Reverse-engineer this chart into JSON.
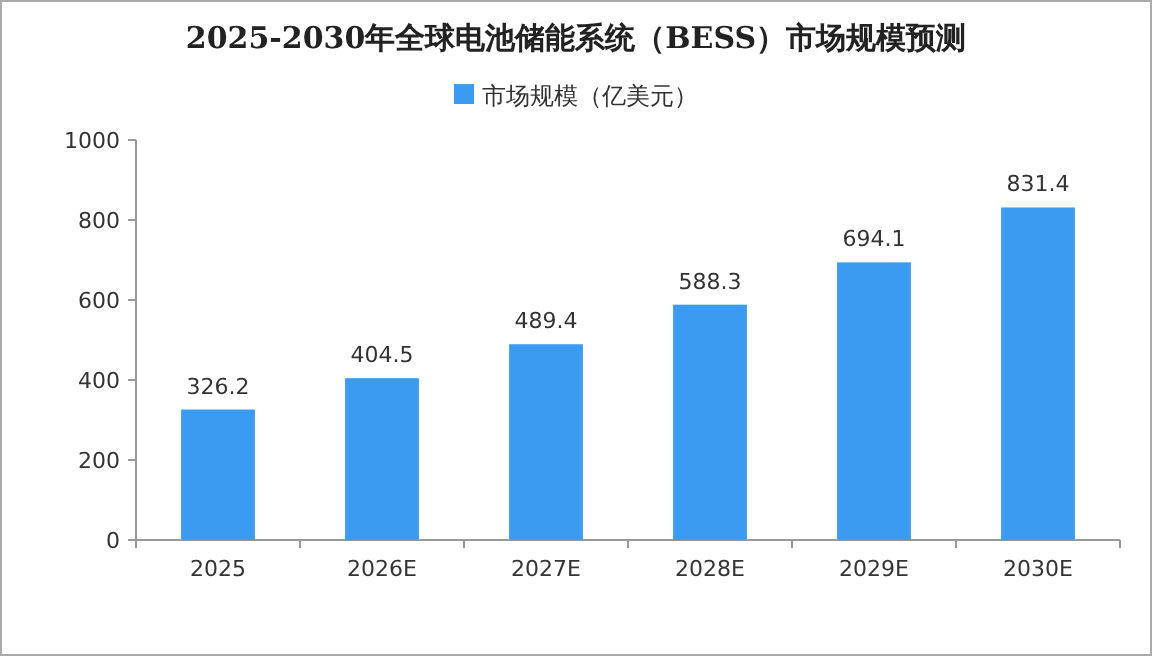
{
  "chart_data": {
    "type": "bar",
    "title": "2025-2030年全球电池储能系统（BESS）市场规模预测",
    "categories": [
      "2025",
      "2026E",
      "2027E",
      "2028E",
      "2029E",
      "2030E"
    ],
    "series": [
      {
        "name": "市场规模（亿美元）",
        "color": "#3a9bf0",
        "values": [
          326.2,
          404.5,
          489.4,
          588.3,
          694.1,
          831.4
        ]
      }
    ],
    "ylim": [
      0,
      1000
    ],
    "yticks": [
      0,
      200,
      400,
      600,
      800,
      1000
    ],
    "data_labels": true,
    "legend": "top"
  }
}
